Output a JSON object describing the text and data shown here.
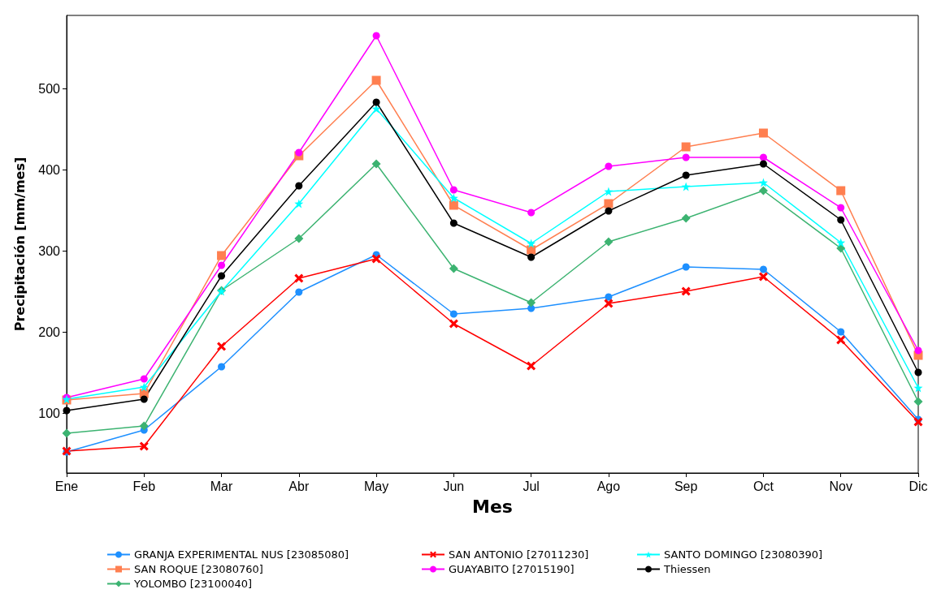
{
  "chart_data": {
    "type": "line",
    "xlabel": "Mes",
    "ylabel": "Precipitación [mm/mes]",
    "categories": [
      "Ene",
      "Feb",
      "Mar",
      "Abr",
      "May",
      "Jun",
      "Jul",
      "Ago",
      "Sep",
      "Oct",
      "Nov",
      "Dic"
    ],
    "ylim": [
      26,
      590
    ],
    "yticks": [
      100,
      200,
      300,
      400,
      500
    ],
    "grid": false,
    "legend": "bottom",
    "line_style": "solid",
    "series": [
      {
        "name": "GRANJA EXPERIMENTAL NUS [23085080]",
        "color": "#1e90ff",
        "marker": "circle",
        "values": [
          52,
          79,
          157,
          249,
          295,
          222,
          229,
          243,
          280,
          277,
          200,
          92
        ]
      },
      {
        "name": "SAN ROQUE [23080760]",
        "color": "#ff7f50",
        "marker": "square",
        "values": [
          116,
          124,
          294,
          417,
          510,
          356,
          301,
          358,
          428,
          445,
          374,
          171
        ]
      },
      {
        "name": "YOLOMBO [23100040]",
        "color": "#3cb371",
        "marker": "diamond",
        "values": [
          75,
          84,
          251,
          315,
          407,
          278,
          236,
          311,
          340,
          374,
          303,
          114
        ]
      },
      {
        "name": "SAN ANTONIO [27011230]",
        "color": "#ff0000",
        "marker": "cross",
        "values": [
          53,
          59,
          182,
          266,
          290,
          210,
          158,
          235,
          250,
          268,
          190,
          89
        ]
      },
      {
        "name": "GUAYABITO [27015190]",
        "color": "#ff00ff",
        "marker": "circle",
        "values": [
          119,
          142,
          282,
          421,
          565,
          375,
          347,
          404,
          415,
          415,
          353,
          177
        ]
      },
      {
        "name": "SANTO DOMINGO [23080390]",
        "color": "#00ffff",
        "marker": "star",
        "values": [
          117,
          132,
          250,
          358,
          475,
          365,
          309,
          373,
          379,
          384,
          310,
          131
        ]
      },
      {
        "name": "Thiessen",
        "color": "#000000",
        "marker": "circle",
        "values": [
          103,
          117,
          269,
          380,
          483,
          334,
          292,
          349,
          393,
          407,
          338,
          150
        ]
      }
    ]
  }
}
